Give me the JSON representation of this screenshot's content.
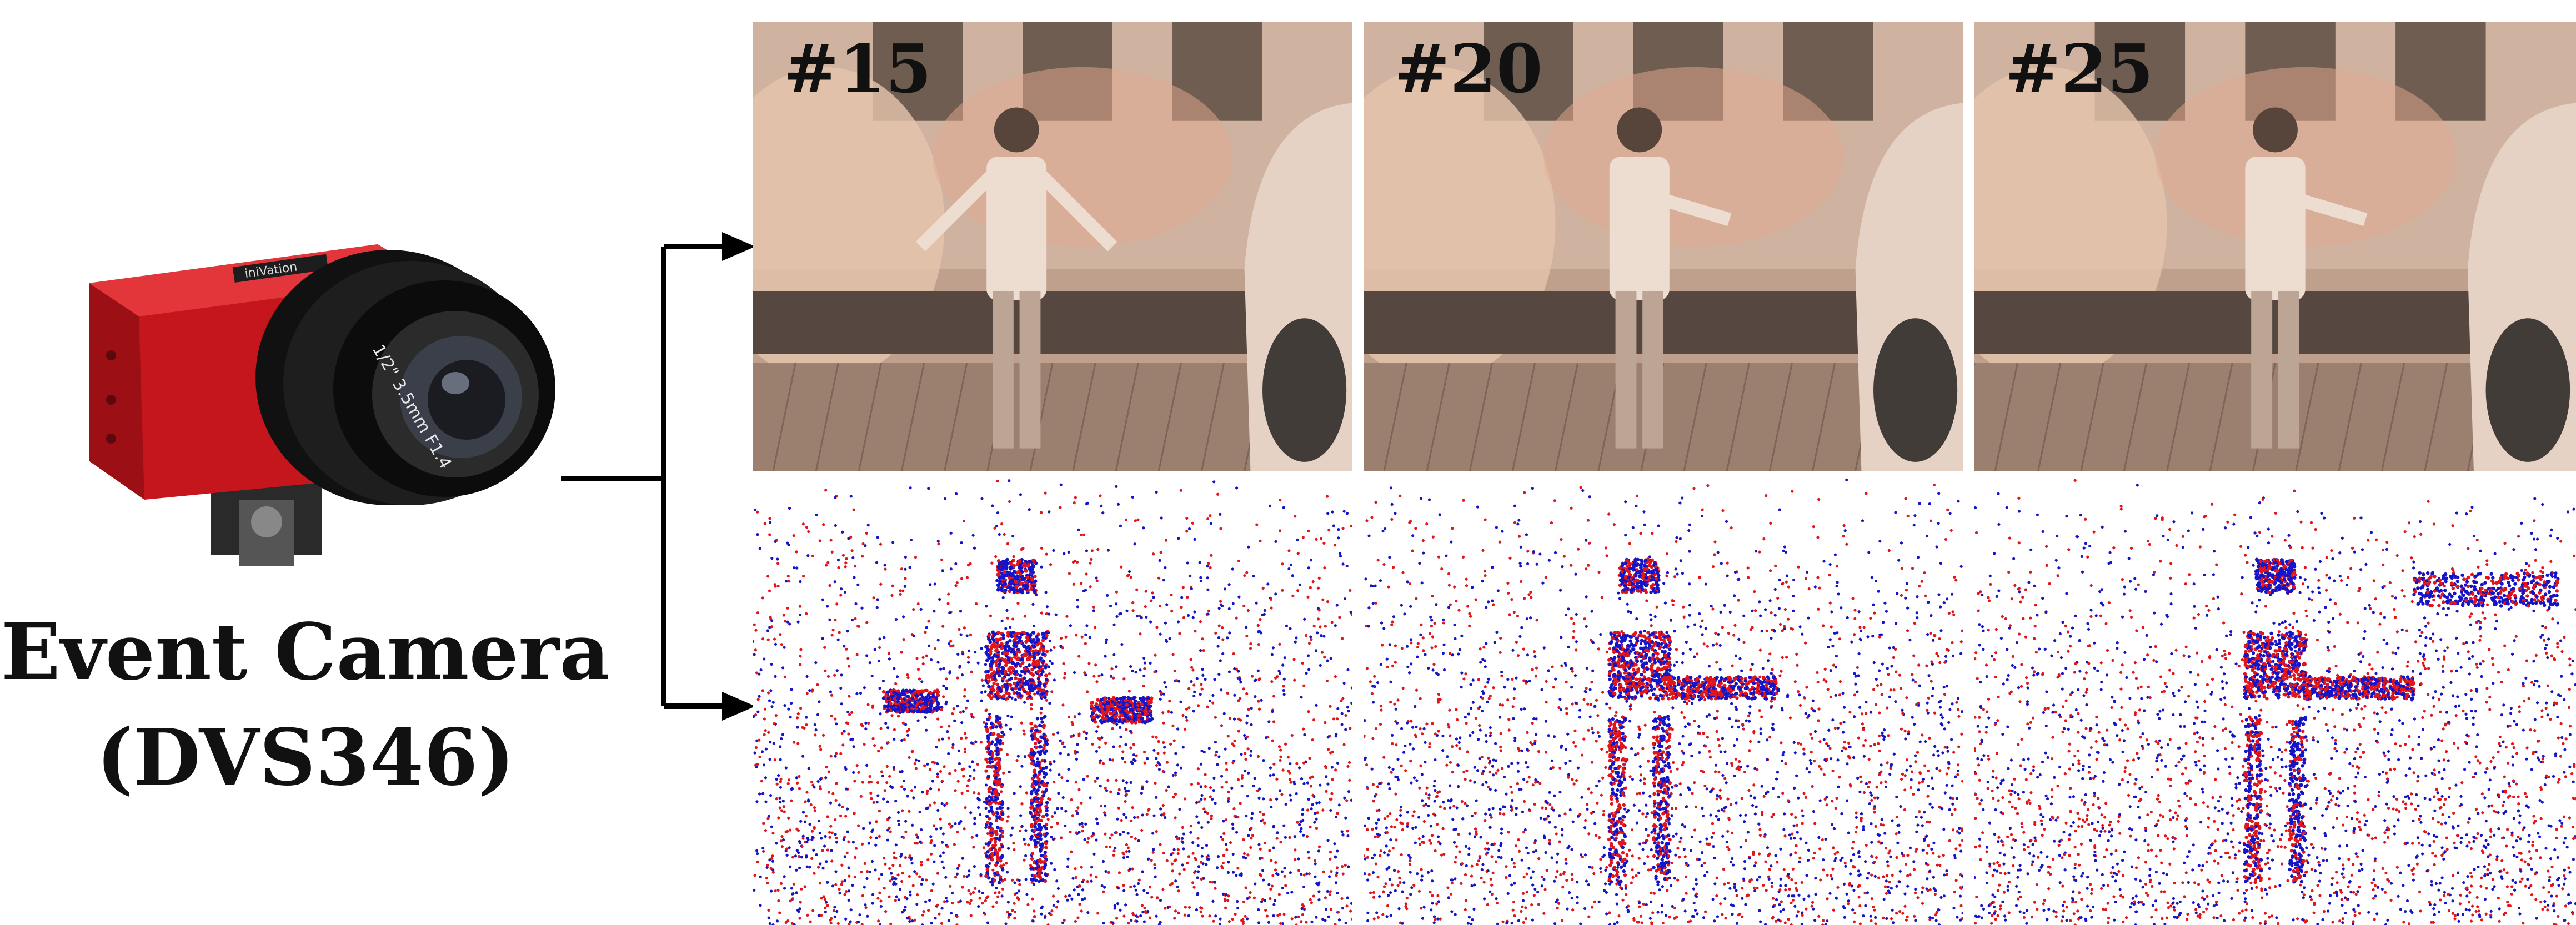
{
  "camera": {
    "caption_line1": "Event Camera",
    "caption_line2": "(DVS346)",
    "body_color": "#c4161c",
    "brand_text": "iniVation"
  },
  "frames": [
    {
      "label": "#15"
    },
    {
      "label": "#20"
    },
    {
      "label": "#25"
    }
  ],
  "event_colors": {
    "positive": "#e0161a",
    "negative": "#1414c8"
  },
  "frame_tint": "#d9b9a0"
}
